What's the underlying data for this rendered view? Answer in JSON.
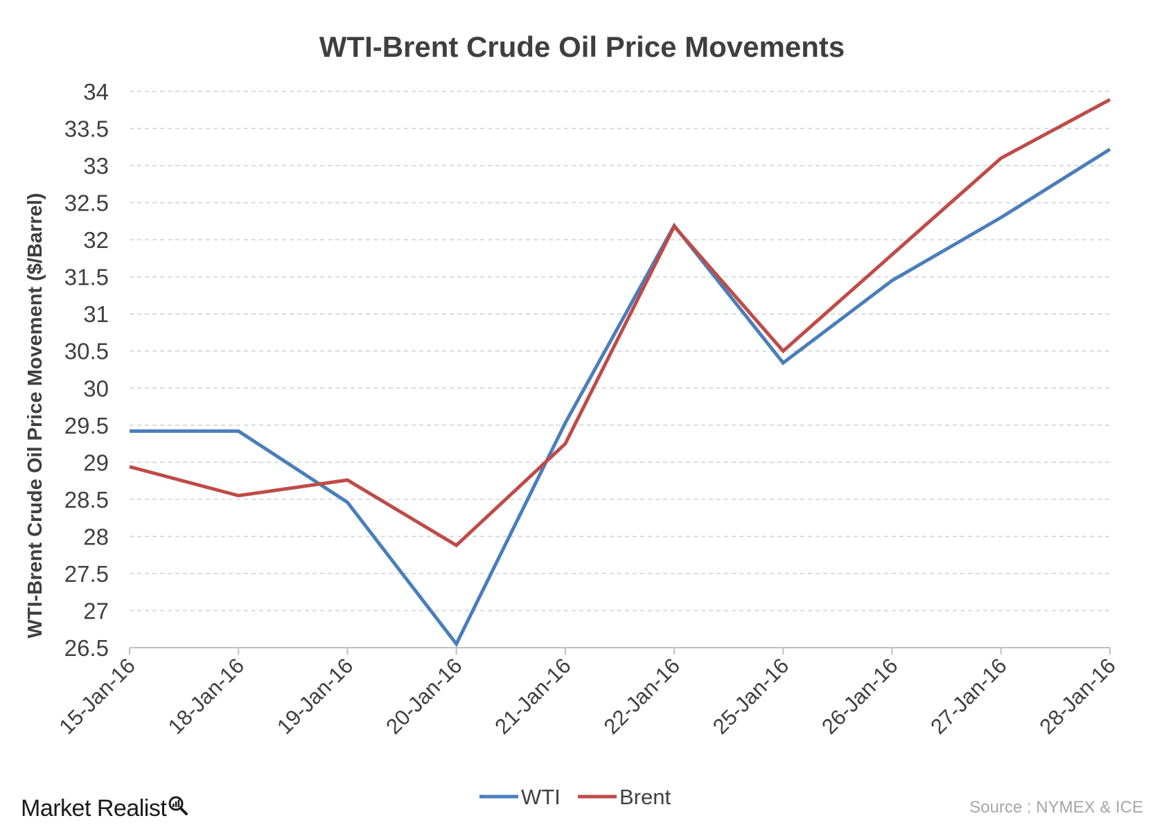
{
  "chart_data": {
    "type": "line",
    "title": "WTI-Brent Crude Oil Price Movements",
    "xlabel": "",
    "ylabel": "WTI-Brent Crude Oil Price Movement ($/Barrel)",
    "categories": [
      "15-Jan-16",
      "18-Jan-16",
      "19-Jan-16",
      "20-Jan-16",
      "21-Jan-16",
      "22-Jan-16",
      "25-Jan-16",
      "26-Jan-16",
      "27-Jan-16",
      "28-Jan-16"
    ],
    "series": [
      {
        "name": "WTI",
        "color": "#4a7ebb",
        "values": [
          29.42,
          29.42,
          28.46,
          26.55,
          29.53,
          32.19,
          30.34,
          31.45,
          32.3,
          33.22
        ]
      },
      {
        "name": "Brent",
        "color": "#be4b48",
        "values": [
          28.94,
          28.55,
          28.76,
          27.88,
          29.25,
          32.18,
          30.5,
          31.8,
          33.1,
          33.89
        ]
      }
    ],
    "ylim": [
      26.5,
      34
    ],
    "yticks": [
      "26.5",
      "27",
      "27.5",
      "28",
      "28.5",
      "29",
      "29.5",
      "30",
      "30.5",
      "31",
      "31.5",
      "32",
      "32.5",
      "33",
      "33.5",
      "34"
    ],
    "grid": "horizontal dashed",
    "legend": "bottom-center"
  },
  "branding": {
    "name": "Market Realist",
    "icon": "magnifier-chart-icon"
  },
  "source": "Source : NYMEX & ICE"
}
